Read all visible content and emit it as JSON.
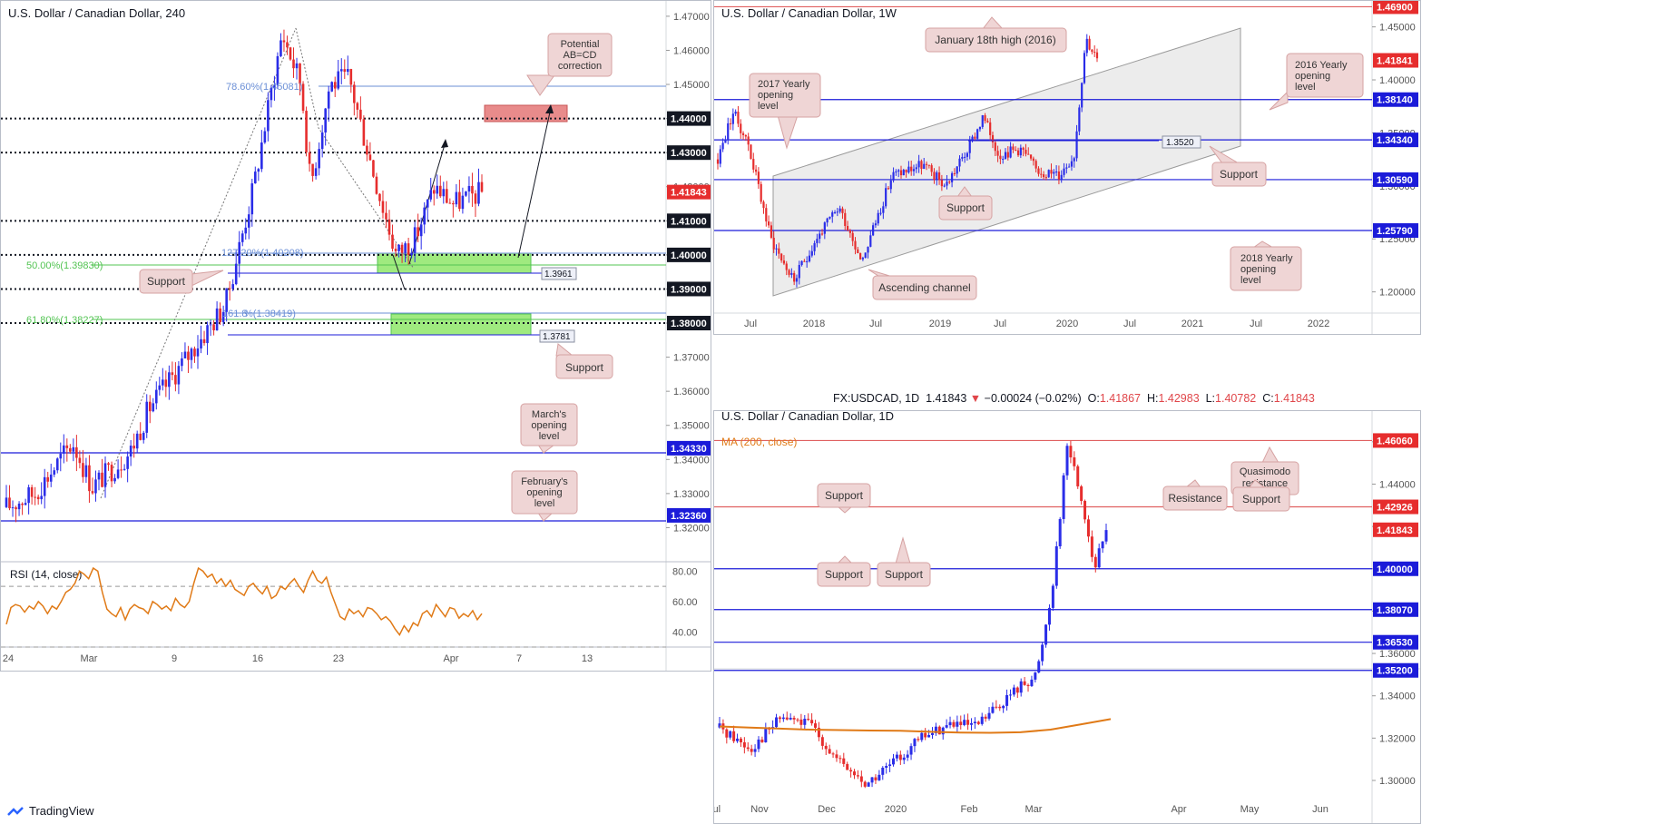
{
  "colors": {
    "up": "#2a2de8",
    "down": "#e62d2d",
    "blueLine": "#1b1bd9",
    "redLine": "#e06060",
    "greenZone": "#9fea7f",
    "redZone": "#e88b8b",
    "callout": "#efd5d5",
    "calloutBorder": "#d6a2a2",
    "rsi": "#e07a17",
    "ma": "#e07a17",
    "fibGreen": "#53c453",
    "fibBlue": "#6b8fd6"
  },
  "footer": {
    "brand": "TradingView"
  },
  "info_bar": {
    "symbol": "FX:USDCAD, 1D",
    "price": "1.41843",
    "change": "−0.00024 (−0.02%)",
    "o_label": "O:",
    "o_value": "1.41867",
    "h_label": "H:",
    "h_value": "1.42983",
    "l_label": "L:",
    "l_value": "1.40782",
    "c_label": "C:",
    "c_value": "1.41843"
  },
  "chart_data": [
    {
      "id": "h4",
      "type": "candlestick",
      "title": "U.S. Dollar / Canadian Dollar, 240",
      "ylim": [
        1.31,
        1.4745
      ],
      "x_ticks": [
        "24",
        "Mar",
        "9",
        "16",
        "23",
        "Apr",
        "7",
        "13"
      ],
      "y_ticks": [
        "1.47000",
        "1.46000",
        "1.45000",
        "1.44000",
        "1.43000",
        "1.42000",
        "1.41000",
        "1.40000",
        "1.39000",
        "1.38000",
        "1.37000",
        "1.36000",
        "1.35000",
        "1.34000",
        "1.33000",
        "1.32000"
      ],
      "price_badges": [
        {
          "label": "1.44000",
          "style": "black"
        },
        {
          "label": "1.43000",
          "style": "black"
        },
        {
          "label": "1.41843",
          "style": "red"
        },
        {
          "label": "1.41000",
          "style": "black"
        },
        {
          "label": "1.40000",
          "style": "black"
        },
        {
          "label": "1.39000",
          "style": "black"
        },
        {
          "label": "1.38000",
          "style": "black"
        },
        {
          "label": "1.34330",
          "style": "navy"
        },
        {
          "label": "1.32360",
          "style": "navy"
        }
      ],
      "levels": [
        1.44,
        1.43,
        1.41,
        1.4,
        1.39,
        1.38
      ],
      "fib_labels": [
        "78.60%(1.45081)",
        "127.20%(1.40208)",
        "50.00%(1.39830)",
        "61.80%(1.38227)",
        "161.8",
        "%(1.38419)"
      ],
      "small_tags": [
        "1.3961",
        "1.3781"
      ],
      "callouts": [
        "Potential",
        "AB=CD",
        "correction",
        "Support",
        "Support",
        "March's",
        "opening",
        "level",
        "February's",
        "opening",
        "level"
      ],
      "rsi": {
        "label": "RSI (14, close)",
        "ticks": [
          "80.00",
          "60.00",
          "40.00"
        ],
        "values": [
          45,
          56,
          58,
          57,
          53,
          57,
          55,
          60,
          57,
          52,
          57,
          55,
          60,
          66,
          68,
          72,
          80,
          78,
          75,
          82,
          80,
          66,
          55,
          52,
          50,
          56,
          48,
          55,
          58,
          56,
          55,
          52,
          60,
          58,
          55,
          57,
          54,
          62,
          58,
          56,
          60,
          72,
          82,
          80,
          76,
          78,
          72,
          75,
          70,
          74,
          68,
          66,
          64,
          70,
          72,
          68,
          65,
          70,
          62,
          64,
          70,
          68,
          72,
          75,
          70,
          66,
          74,
          80,
          74,
          72,
          76,
          66,
          58,
          50,
          48,
          55,
          52,
          54,
          50,
          56,
          55,
          52,
          48,
          50,
          47,
          42,
          38,
          44,
          40,
          46,
          44,
          52,
          54,
          50,
          58,
          54,
          50,
          56,
          55,
          49,
          52,
          50,
          54,
          48,
          52
        ]
      }
    },
    {
      "id": "w1",
      "type": "candlestick",
      "title": "U.S. Dollar / Canadian Dollar, 1W",
      "ylim": [
        1.18,
        1.4745
      ],
      "x_ticks": [
        "Jul",
        "2018",
        "Jul",
        "2019",
        "Jul",
        "2020",
        "Jul",
        "2021",
        "Jul",
        "2022"
      ],
      "y_ticks": [
        "1.45000",
        "1.40000",
        "1.35000",
        "1.30000",
        "1.25000",
        "1.20000"
      ],
      "price_badges": [
        {
          "label": "1.46900",
          "style": "red"
        },
        {
          "label": "1.41841",
          "style": "red"
        },
        {
          "label": "1.38140",
          "style": "navy"
        },
        {
          "label": "1.34340",
          "style": "navy"
        },
        {
          "label": "1.30590",
          "style": "navy"
        },
        {
          "label": "1.25790",
          "style": "navy"
        }
      ],
      "levels": [
        1.469,
        1.3814,
        1.3434,
        1.3059,
        1.2579
      ],
      "small_tags": [
        "1.3520"
      ],
      "callouts": [
        "January 18th high (2016)",
        "2017 Yearly",
        "opening",
        "level",
        "2016 Yearly",
        "opening",
        "level",
        "Support",
        "Support",
        "Ascending channel",
        "2018 Yearly",
        "opening",
        "level"
      ]
    },
    {
      "id": "d1",
      "type": "candlestick",
      "title": "U.S. Dollar / Canadian Dollar, 1D",
      "ylim": [
        1.285,
        1.4745
      ],
      "ma_label": "MA (200, close)",
      "x_ticks": [
        "Nov",
        "Dec",
        "2020",
        "Feb",
        "Mar",
        "Apr",
        "May",
        "Jun",
        "Jul"
      ],
      "y_ticks": [
        "1.46000",
        "1.44000",
        "1.42000",
        "1.40000",
        "1.38000",
        "1.36000",
        "1.34000",
        "1.32000",
        "1.30000"
      ],
      "price_badges": [
        {
          "label": "1.46060",
          "style": "red"
        },
        {
          "label": "1.42926",
          "style": "red"
        },
        {
          "label": "1.41843",
          "style": "red"
        },
        {
          "label": "1.40000",
          "style": "navy"
        },
        {
          "label": "1.38070",
          "style": "navy"
        },
        {
          "label": "1.36530",
          "style": "navy"
        },
        {
          "label": "1.35200",
          "style": "navy"
        }
      ],
      "levels": [
        1.4606,
        1.42926,
        1.4,
        1.3807,
        1.3653,
        1.352
      ],
      "callouts": [
        "Quasimodo",
        "resistance",
        "Resistance",
        "Support",
        "Support",
        "Support",
        "Support"
      ]
    }
  ]
}
